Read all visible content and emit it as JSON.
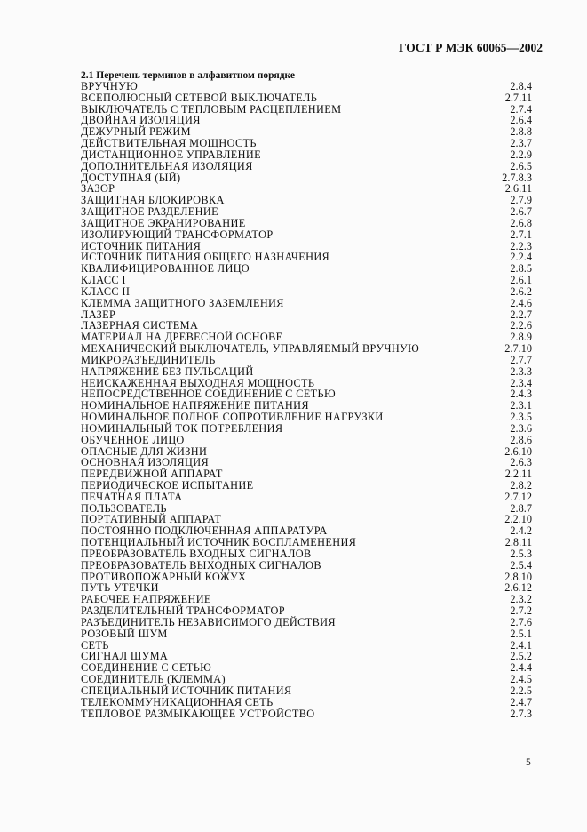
{
  "header": "ГОСТ Р МЭК 60065—2002",
  "section_title": "2.1 Перечень терминов в алфавитном порядке",
  "terms": [
    {
      "term": "ВРУЧНУЮ",
      "ref": "2.8.4"
    },
    {
      "term": "ВСЕПОЛЮСНЫЙ СЕТЕВОЙ ВЫКЛЮЧАТЕЛЬ",
      "ref": "2.7.11"
    },
    {
      "term": "ВЫКЛЮЧАТЕЛЬ С ТЕПЛОВЫМ РАСЦЕПЛЕНИЕМ",
      "ref": "2.7.4"
    },
    {
      "term": "ДВОЙНАЯ ИЗОЛЯЦИЯ",
      "ref": "2.6.4"
    },
    {
      "term": "ДЕЖУРНЫЙ РЕЖИМ",
      "ref": "2.8.8"
    },
    {
      "term": "ДЕЙСТВИТЕЛЬНАЯ МОЩНОСТЬ",
      "ref": "2.3.7"
    },
    {
      "term": "ДИСТАНЦИОННОЕ УПРАВЛЕНИЕ",
      "ref": "2.2.9"
    },
    {
      "term": "ДОПОЛНИТЕЛЬНАЯ ИЗОЛЯЦИЯ",
      "ref": "2.6.5"
    },
    {
      "term": "ДОСТУПНАЯ (ЫЙ)",
      "ref": "2.7.8.3"
    },
    {
      "term": "ЗАЗОР",
      "ref": "2.6.11"
    },
    {
      "term": "ЗАЩИТНАЯ БЛОКИРОВКА",
      "ref": "2.7.9"
    },
    {
      "term": "ЗАЩИТНОЕ РАЗДЕЛЕНИЕ",
      "ref": "2.6.7"
    },
    {
      "term": "ЗАЩИТНОЕ ЭКРАНИРОВАНИЕ",
      "ref": "2.6.8"
    },
    {
      "term": "ИЗОЛИРУЮЩИЙ ТРАНСФОРМАТОР",
      "ref": "2.7.1"
    },
    {
      "term": "ИСТОЧНИК ПИТАНИЯ",
      "ref": "2.2.3"
    },
    {
      "term": "ИСТОЧНИК ПИТАНИЯ ОБЩЕГО НАЗНАЧЕНИЯ",
      "ref": "2.2.4"
    },
    {
      "term": "КВАЛИФИЦИРОВАННОЕ ЛИЦО",
      "ref": "2.8.5"
    },
    {
      "term": "КЛАСС I",
      "ref": "2.6.1"
    },
    {
      "term": "КЛАСС II",
      "ref": "2.6.2"
    },
    {
      "term": "КЛЕММА ЗАЩИТНОГО ЗАЗЕМЛЕНИЯ",
      "ref": "2.4.6"
    },
    {
      "term": "ЛАЗЕР",
      "ref": "2.2.7"
    },
    {
      "term": "ЛАЗЕРНАЯ СИСТЕМА",
      "ref": "2.2.6"
    },
    {
      "term": "МАТЕРИАЛ НА ДРЕВЕСНОЙ ОСНОВЕ",
      "ref": "2.8.9"
    },
    {
      "term": "МЕХАНИЧЕСКИЙ ВЫКЛЮЧАТЕЛЬ, УПРАВЛЯЕМЫЙ ВРУЧНУЮ",
      "ref": "2.7.10"
    },
    {
      "term": "МИКРОРАЗЪЕДИНИТЕЛЬ",
      "ref": "2.7.7"
    },
    {
      "term": "НАПРЯЖЕНИЕ БЕЗ ПУЛЬСАЦИЙ",
      "ref": "2.3.3"
    },
    {
      "term": "НЕИСКАЖЕННАЯ ВЫХОДНАЯ МОЩНОСТЬ",
      "ref": "2.3.4"
    },
    {
      "term": "НЕПОСРЕДСТВЕННОЕ СОЕДИНЕНИЕ С СЕТЬЮ",
      "ref": "2.4.3"
    },
    {
      "term": "НОМИНАЛЬНОЕ НАПРЯЖЕНИЕ ПИТАНИЯ",
      "ref": "2.3.1"
    },
    {
      "term": "НОМИНАЛЬНОЕ ПОЛНОЕ СОПРОТИВЛЕНИЕ НАГРУЗКИ",
      "ref": "2.3.5"
    },
    {
      "term": "НОМИНАЛЬНЫЙ ТОК ПОТРЕБЛЕНИЯ",
      "ref": "2.3.6"
    },
    {
      "term": "ОБУЧЕННОЕ ЛИЦО",
      "ref": "2.8.6"
    },
    {
      "term": "ОПАСНЫЕ ДЛЯ ЖИЗНИ",
      "ref": "2.6.10"
    },
    {
      "term": "ОСНОВНАЯ ИЗОЛЯЦИЯ",
      "ref": "2.6.3"
    },
    {
      "term": "ПЕРЕДВИЖНОЙ АППАРАТ",
      "ref": "2.2.11"
    },
    {
      "term": "ПЕРИОДИЧЕСКОЕ ИСПЫТАНИЕ",
      "ref": "2.8.2"
    },
    {
      "term": "ПЕЧАТНАЯ ПЛАТА",
      "ref": "2.7.12"
    },
    {
      "term": "ПОЛЬЗОВАТЕЛЬ",
      "ref": "2.8.7"
    },
    {
      "term": "ПОРТАТИВНЫЙ АППАРАТ",
      "ref": "2.2.10"
    },
    {
      "term": "ПОСТОЯННО ПОДКЛЮЧЕННАЯ АППАРАТУРА",
      "ref": "2.4.2"
    },
    {
      "term": "ПОТЕНЦИАЛЬНЫЙ ИСТОЧНИК ВОСПЛАМЕНЕНИЯ",
      "ref": "2.8.11"
    },
    {
      "term": "ПРЕОБРАЗОВАТЕЛЬ ВХОДНЫХ СИГНАЛОВ",
      "ref": "2.5.3"
    },
    {
      "term": "ПРЕОБРАЗОВАТЕЛЬ ВЫХОДНЫХ СИГНАЛОВ",
      "ref": "2.5.4"
    },
    {
      "term": "ПРОТИВОПОЖАРНЫЙ КОЖУХ",
      "ref": "2.8.10"
    },
    {
      "term": "ПУТЬ УТЕЧКИ",
      "ref": "2.6.12"
    },
    {
      "term": "РАБОЧЕЕ НАПРЯЖЕНИЕ",
      "ref": "2.3.2"
    },
    {
      "term": "РАЗДЕЛИТЕЛЬНЫЙ ТРАНСФОРМАТОР",
      "ref": "2.7.2"
    },
    {
      "term": "РАЗЪЕДИНИТЕЛЬ НЕЗАВИСИМОГО ДЕЙСТВИЯ",
      "ref": "2.7.6"
    },
    {
      "term": "РОЗОВЫЙ ШУМ",
      "ref": "2.5.1"
    },
    {
      "term": "СЕТЬ",
      "ref": "2.4.1"
    },
    {
      "term": "СИГНАЛ ШУМА",
      "ref": "2.5.2"
    },
    {
      "term": "СОЕДИНЕНИЕ С СЕТЬЮ",
      "ref": "2.4.4"
    },
    {
      "term": "СОЕДИНИТЕЛЬ (КЛЕММА)",
      "ref": "2.4.5"
    },
    {
      "term": "СПЕЦИАЛЬНЫЙ ИСТОЧНИК ПИТАНИЯ",
      "ref": "2.2.5"
    },
    {
      "term": "ТЕЛЕКОММУНИКАЦИОННАЯ СЕТЬ",
      "ref": "2.4.7"
    },
    {
      "term": "ТЕПЛОВОЕ РАЗМЫКАЮЩЕЕ УСТРОЙСТВО",
      "ref": "2.7.3"
    }
  ],
  "page_number": "5"
}
